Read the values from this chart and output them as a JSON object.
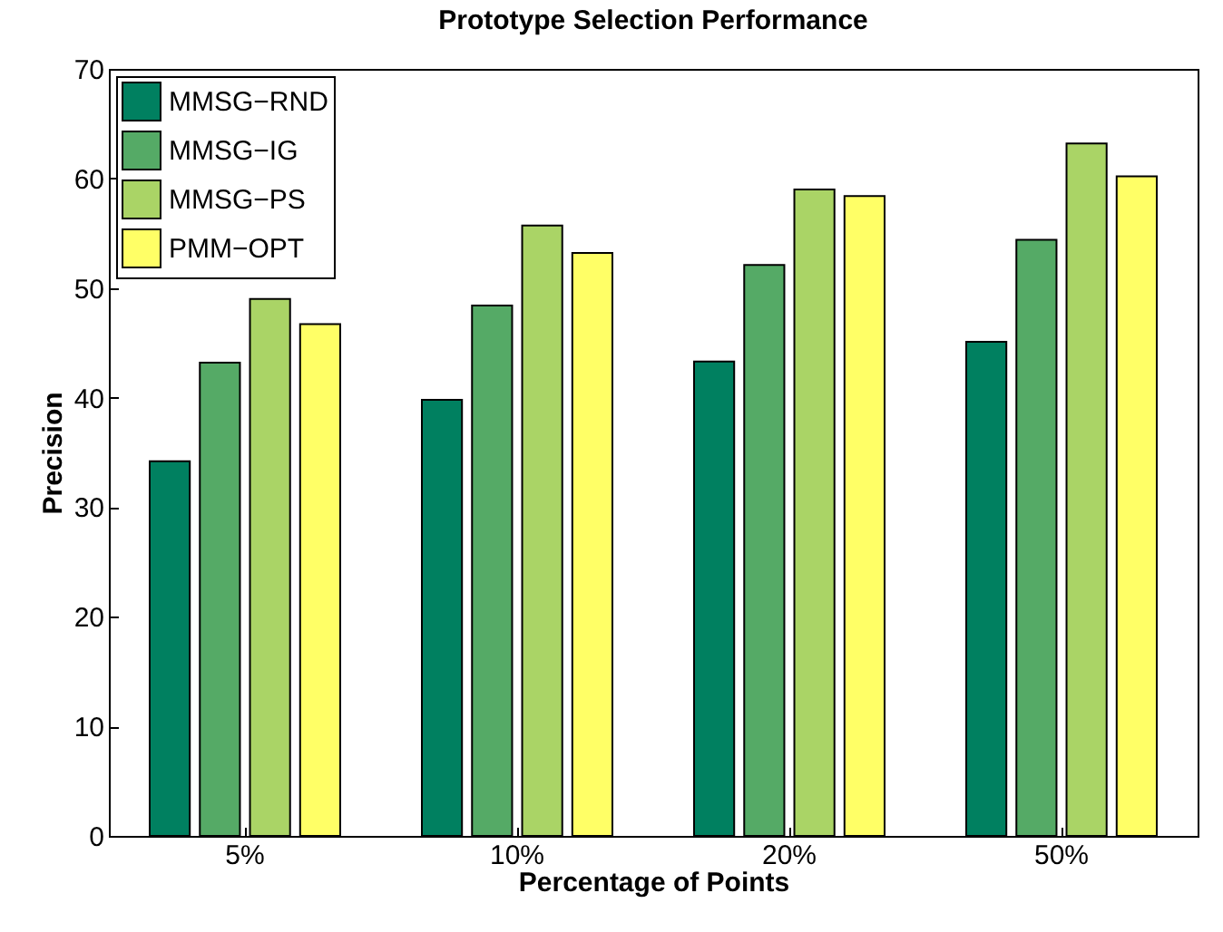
{
  "chart_data": {
    "type": "bar",
    "title": "Prototype Selection Performance",
    "xlabel": "Percentage of Points",
    "ylabel": "Precision",
    "categories": [
      "5%",
      "10%",
      "20%",
      "50%"
    ],
    "series": [
      {
        "name": "MMSG−RND",
        "color": "#008060",
        "values": [
          34.2,
          39.8,
          43.3,
          45.1
        ]
      },
      {
        "name": "MMSG−IG",
        "color": "#55aa66",
        "values": [
          43.2,
          48.4,
          52.1,
          54.4
        ]
      },
      {
        "name": "MMSG−PS",
        "color": "#aad466",
        "values": [
          49.0,
          55.7,
          59.0,
          63.2
        ]
      },
      {
        "name": "PMM−OPT",
        "color": "#ffff66",
        "values": [
          46.7,
          53.2,
          58.4,
          60.2
        ]
      }
    ],
    "ylim": [
      0,
      70
    ],
    "yticks": [
      0,
      10,
      20,
      30,
      40,
      50,
      60,
      70
    ],
    "grid": false,
    "legend": "top left"
  }
}
